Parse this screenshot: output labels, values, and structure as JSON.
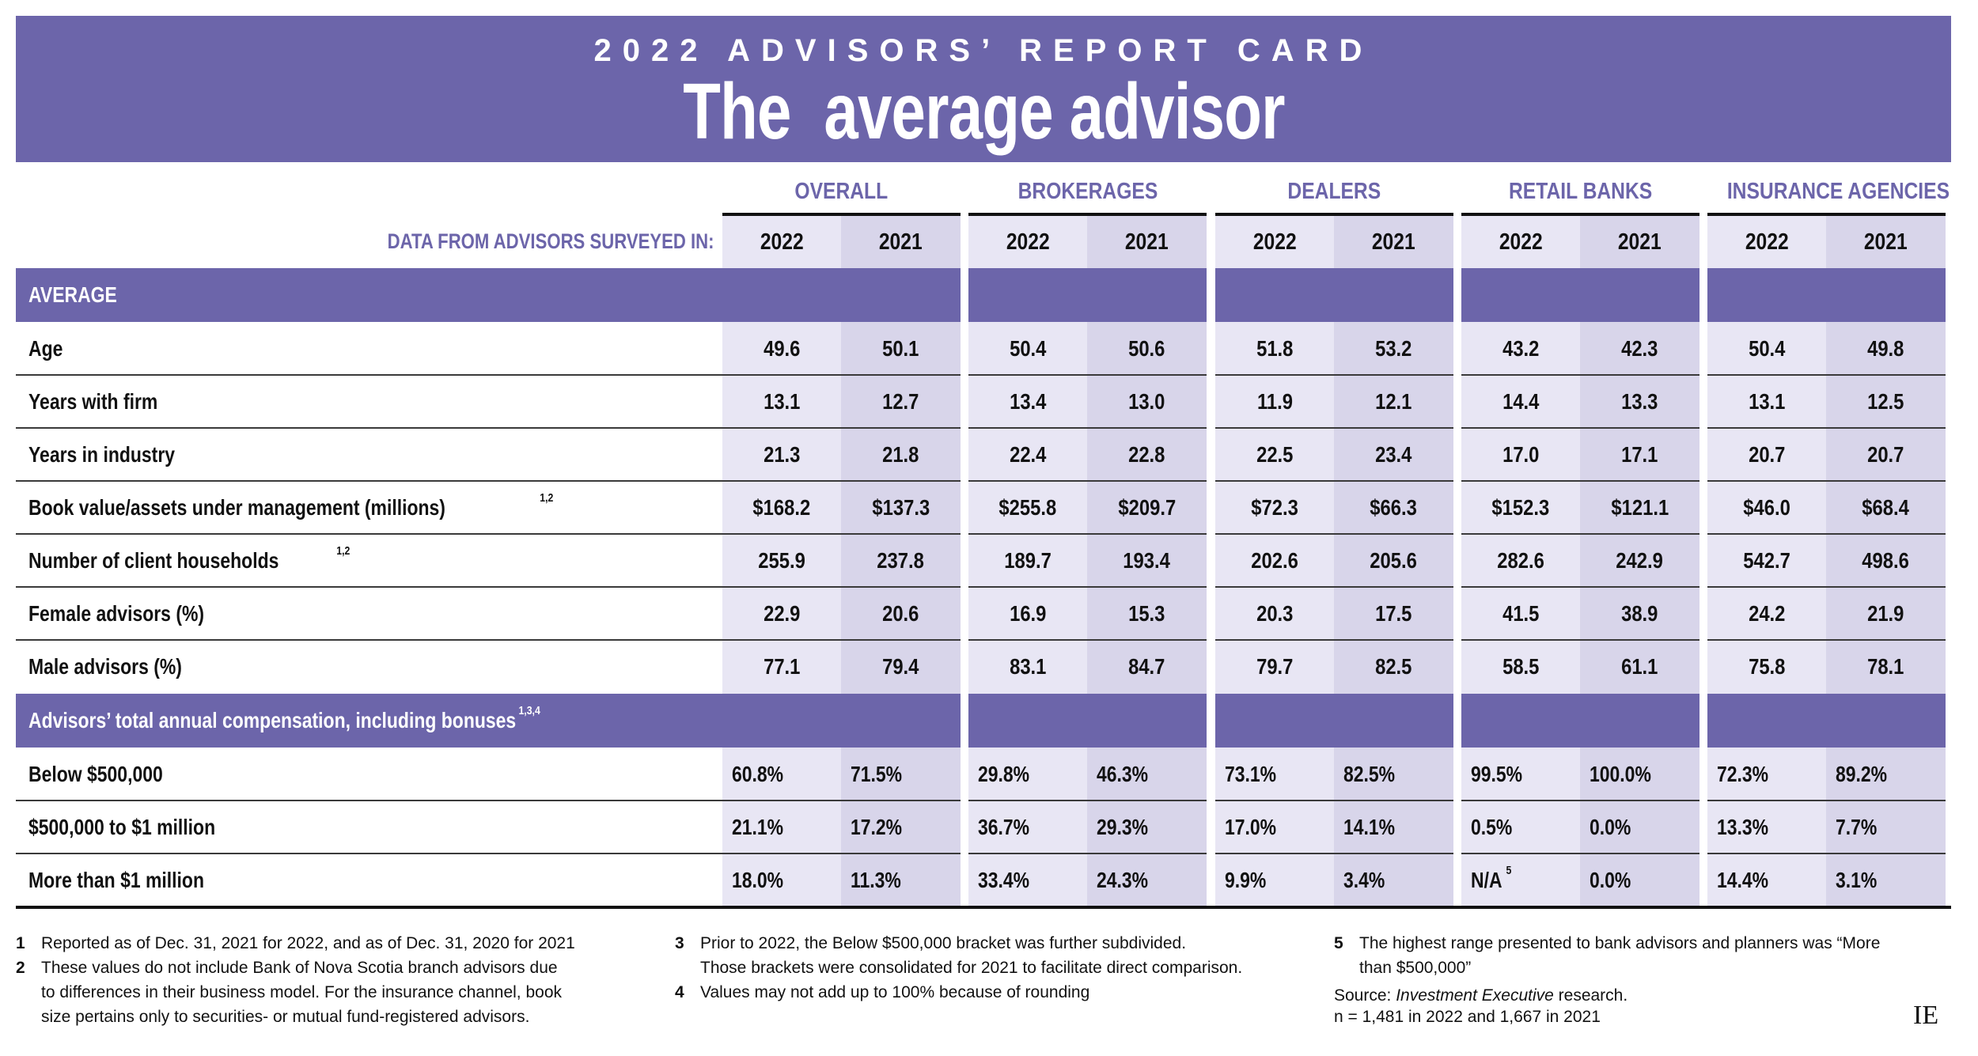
{
  "banner": {
    "kicker": "2022 ADVISORS’ REPORT CARD",
    "title": "The  average advisor",
    "background_color": "#6C65AA"
  },
  "header": {
    "survey_label": "DATA FROM ADVISORS SURVEYED IN:",
    "groups": [
      {
        "name": "OVERALL",
        "years": [
          "2022",
          "2021"
        ]
      },
      {
        "name": "BROKERAGES",
        "years": [
          "2022",
          "2021"
        ]
      },
      {
        "name": "DEALERS",
        "years": [
          "2022",
          "2021"
        ]
      },
      {
        "name": "RETAIL BANKS",
        "years": [
          "2022",
          "2021"
        ]
      },
      {
        "name": "INSURANCE AGENCIES",
        "years": [
          "2022",
          "2021"
        ]
      }
    ]
  },
  "sections": {
    "average": {
      "label": "AVERAGE",
      "rows": [
        {
          "label": "Age",
          "sup": "",
          "values": [
            "49.6",
            "50.1",
            "50.4",
            "50.6",
            "51.8",
            "53.2",
            "43.2",
            "42.3",
            "50.4",
            "49.8"
          ]
        },
        {
          "label": "Years with firm",
          "sup": "",
          "values": [
            "13.1",
            "12.7",
            "13.4",
            "13.0",
            "11.9",
            "12.1",
            "14.4",
            "13.3",
            "13.1",
            "12.5"
          ]
        },
        {
          "label": "Years in industry",
          "sup": "",
          "values": [
            "21.3",
            "21.8",
            "22.4",
            "22.8",
            "22.5",
            "23.4",
            "17.0",
            "17.1",
            "20.7",
            "20.7"
          ]
        },
        {
          "label": "Book value/assets under management (millions)",
          "sup": "1,2",
          "values": [
            "$168.2",
            "$137.3",
            "$255.8",
            "$209.7",
            "$72.3",
            "$66.3",
            "$152.3",
            "$121.1",
            "$46.0",
            "$68.4"
          ]
        },
        {
          "label": "Number of client households",
          "sup": "1,2",
          "values": [
            "255.9",
            "237.8",
            "189.7",
            "193.4",
            "202.6",
            "205.6",
            "282.6",
            "242.9",
            "542.7",
            "498.6"
          ]
        },
        {
          "label": "Female advisors (%)",
          "sup": "",
          "values": [
            "22.9",
            "20.6",
            "16.9",
            "15.3",
            "20.3",
            "17.5",
            "41.5",
            "38.9",
            "24.2",
            "21.9"
          ]
        },
        {
          "label": "Male advisors (%)",
          "sup": "",
          "values": [
            "77.1",
            "79.4",
            "83.1",
            "84.7",
            "79.7",
            "82.5",
            "58.5",
            "61.1",
            "75.8",
            "78.1"
          ]
        }
      ]
    },
    "compensation": {
      "label": "Advisors’ total annual compensation, including bonuses",
      "sup": "1,3,4",
      "rows": [
        {
          "label": "Below $500,000",
          "values": [
            "60.8%",
            "71.5%",
            "29.8%",
            "46.3%",
            "73.1%",
            "82.5%",
            "99.5%",
            "100.0%",
            "72.3%",
            "89.2%"
          ],
          "sups": [
            "",
            "",
            "",
            "",
            "",
            "",
            "",
            "",
            "",
            ""
          ]
        },
        {
          "label": "$500,000 to $1 million",
          "values": [
            "21.1%",
            "17.2%",
            "36.7%",
            "29.3%",
            "17.0%",
            "14.1%",
            "0.5%",
            "0.0%",
            "13.3%",
            "7.7%"
          ],
          "sups": [
            "",
            "",
            "",
            "",
            "",
            "",
            "",
            "",
            "",
            ""
          ]
        },
        {
          "label": "More than $1 million",
          "values": [
            "18.0%",
            "11.3%",
            "33.4%",
            "24.3%",
            "9.9%",
            "3.4%",
            "N/A",
            "0.0%",
            "14.4%",
            "3.1%"
          ],
          "sups": [
            "",
            "",
            "",
            "",
            "",
            "",
            "5",
            "",
            "",
            ""
          ]
        }
      ]
    }
  },
  "footnotes": [
    {
      "num": "1",
      "lines": [
        "Reported as of Dec. 31, 2021 for 2022, and as of Dec. 31, 2020 for 2021"
      ]
    },
    {
      "num": "2",
      "lines": [
        "These values do not include Bank of Nova Scotia branch advisors due",
        "to differences in their business model. For the insurance channel, book",
        "size pertains only to securities- or mutual fund-registered advisors."
      ]
    },
    {
      "num": "3",
      "lines": [
        "Prior to 2022, the Below $500,000 bracket was further subdivided.",
        "Those brackets were consolidated for 2021 to facilitate direct comparison."
      ]
    },
    {
      "num": "4",
      "lines": [
        "Values may not add up to 100% because of rounding"
      ]
    },
    {
      "num": "5",
      "lines": [
        "The highest range presented to bank advisors and planners was “More",
        "than $500,000”"
      ]
    }
  ],
  "source": {
    "prefix": "Source: ",
    "publication": "Investment Executive",
    "suffix": " research.",
    "sample": "n = 1,481 in 2022 and 1,667 in 2021"
  },
  "logo": "IE",
  "colors": {
    "purple": "#6C65AA",
    "cell_2022": "#E8E6F4",
    "cell_2021": "#D8D5EA"
  }
}
